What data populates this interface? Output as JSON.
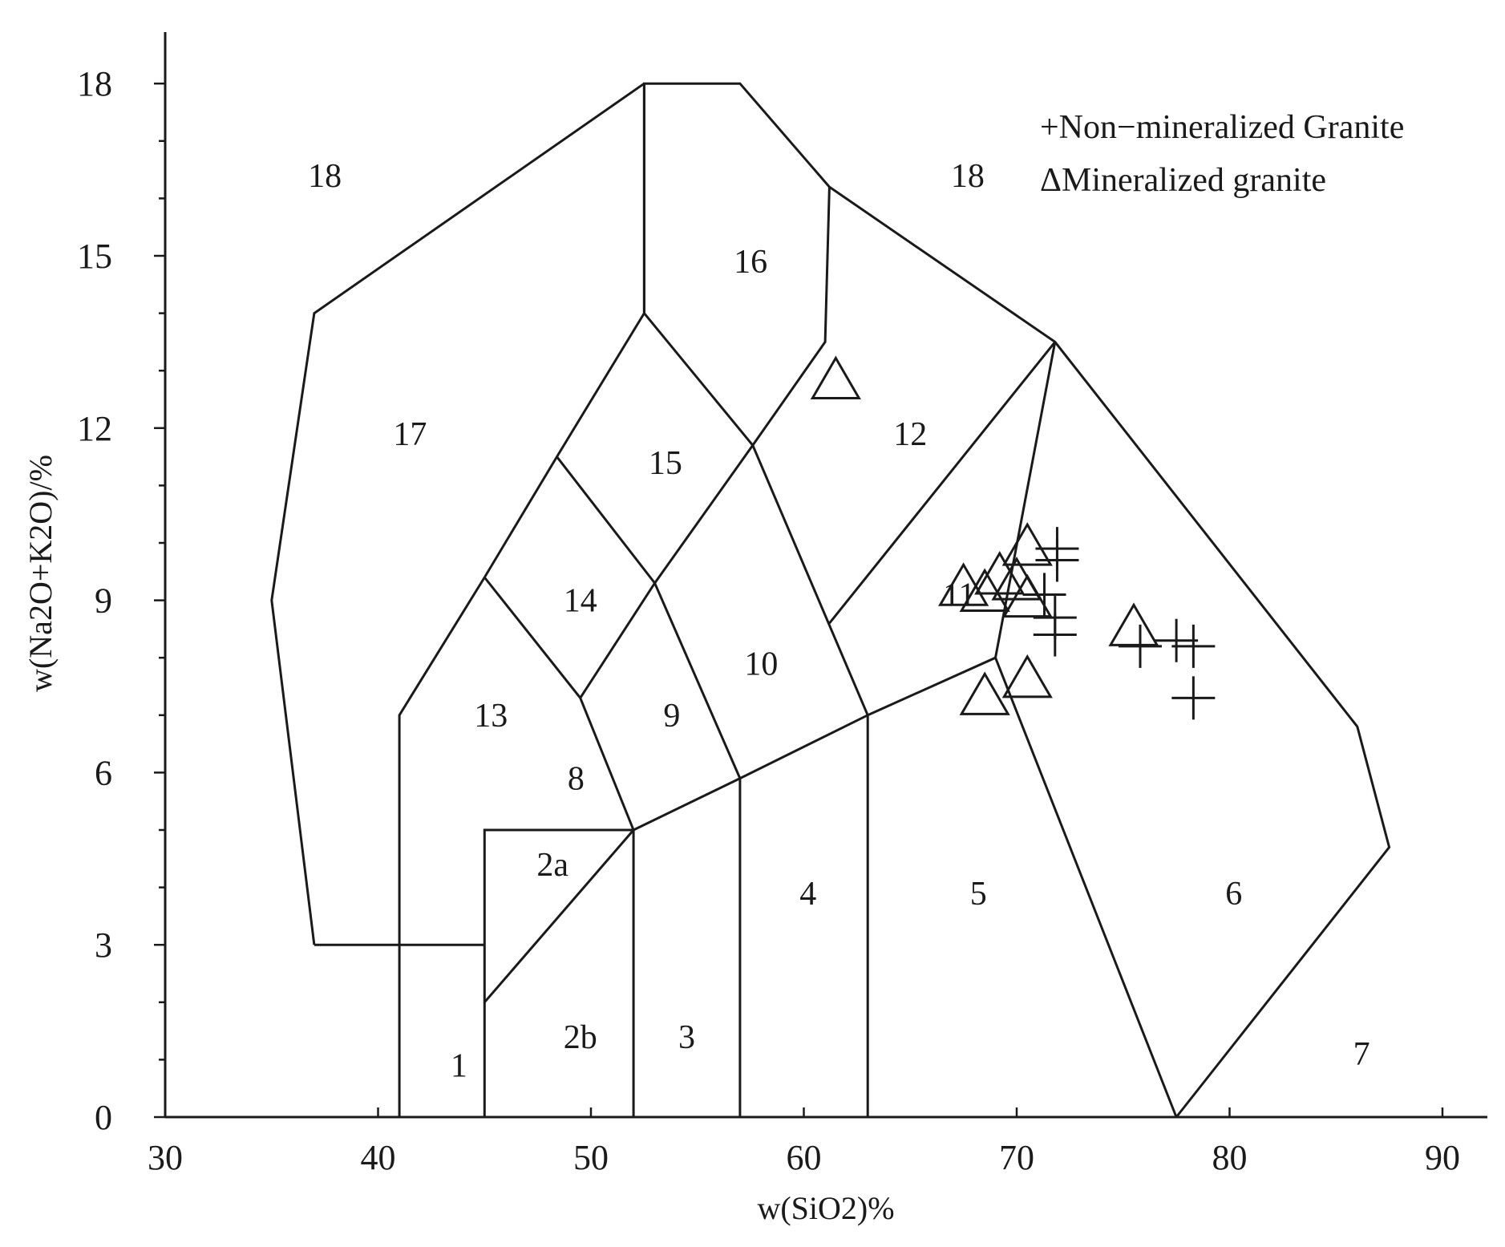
{
  "chart_data": {
    "type": "scatter",
    "xlabel": "w(SiO2)%",
    "ylabel": "w(Na2O+K2O)/%",
    "xlim": [
      30,
      92
    ],
    "ylim": [
      0,
      19
    ],
    "x_ticks": [
      "30",
      "40",
      "50",
      "60",
      "70",
      "80",
      "90"
    ],
    "y_ticks": [
      "0",
      "3",
      "6",
      "9",
      "12",
      "15",
      "18"
    ],
    "legend": {
      "placement": "top-right",
      "entries": [
        "+Non−mineralized Granite",
        "ΔMineralized granite"
      ]
    },
    "fields": [
      [
        [
          41,
          0
        ],
        [
          41,
          7
        ],
        [
          45,
          9.4
        ],
        [
          48.4,
          11.5
        ],
        [
          52.5,
          14
        ],
        [
          52.5,
          18
        ],
        [
          57,
          18
        ],
        [
          61.2,
          16.2
        ],
        [
          71.8,
          13.5
        ],
        [
          86,
          6.8
        ],
        [
          87.5,
          4.7
        ],
        [
          77.5,
          0
        ]
      ],
      [
        [
          37,
          3
        ],
        [
          45,
          3
        ]
      ],
      [
        [
          45,
          0
        ],
        [
          45,
          5
        ],
        [
          52,
          5
        ]
      ],
      [
        [
          45,
          2
        ],
        [
          52,
          5
        ],
        [
          57,
          5.9
        ],
        [
          63,
          7
        ],
        [
          69,
          8
        ],
        [
          77.5,
          0
        ]
      ],
      [
        [
          52,
          0
        ],
        [
          52,
          5
        ],
        [
          49.5,
          7.3
        ],
        [
          45,
          9.4
        ]
      ],
      [
        [
          57,
          0
        ],
        [
          57,
          5.9
        ],
        [
          53,
          9.3
        ],
        [
          48.4,
          11.5
        ]
      ],
      [
        [
          63,
          0
        ],
        [
          63,
          7
        ],
        [
          57.6,
          11.7
        ],
        [
          52.5,
          14
        ]
      ],
      [
        [
          49.5,
          7.3
        ],
        [
          53,
          9.3
        ],
        [
          57.6,
          11.7
        ],
        [
          61,
          13.5
        ],
        [
          61.2,
          16.2
        ]
      ],
      [
        [
          69,
          8
        ],
        [
          71.8,
          13.5
        ],
        [
          61.2,
          8.6
        ]
      ],
      [
        [
          52.5,
          18
        ],
        [
          52.5,
          14
        ]
      ],
      [
        [
          37,
          3
        ],
        [
          35,
          9
        ],
        [
          37,
          14
        ],
        [
          52.5,
          18
        ]
      ]
    ],
    "region_labels": [
      {
        "text": "1",
        "x": 43.8,
        "y": 0.9
      },
      {
        "text": "2a",
        "x": 48.2,
        "y": 4.4
      },
      {
        "text": "2b",
        "x": 49.5,
        "y": 1.4
      },
      {
        "text": "3",
        "x": 54.5,
        "y": 1.4
      },
      {
        "text": "4",
        "x": 60.2,
        "y": 3.9
      },
      {
        "text": "5",
        "x": 68.2,
        "y": 3.9
      },
      {
        "text": "6",
        "x": 80.2,
        "y": 3.9
      },
      {
        "text": "7",
        "x": 86.2,
        "y": 1.1
      },
      {
        "text": "8",
        "x": 49.3,
        "y": 5.9
      },
      {
        "text": "9",
        "x": 53.8,
        "y": 7
      },
      {
        "text": "10",
        "x": 58,
        "y": 7.9
      },
      {
        "text": "11",
        "x": 67.3,
        "y": 9.1
      },
      {
        "text": "12",
        "x": 65,
        "y": 11.9
      },
      {
        "text": "13",
        "x": 45.3,
        "y": 7
      },
      {
        "text": "14",
        "x": 49.5,
        "y": 9
      },
      {
        "text": "15",
        "x": 53.5,
        "y": 11.4
      },
      {
        "text": "16",
        "x": 57.5,
        "y": 14.9
      },
      {
        "text": "17",
        "x": 41.5,
        "y": 11.9
      },
      {
        "text": "18",
        "x": 37.5,
        "y": 16.4
      },
      {
        "text": "18",
        "x": 67.7,
        "y": 16.4
      }
    ],
    "series": [
      {
        "name": "+Non−mineralized Granite",
        "marker": "plus",
        "points": [
          [
            71.9,
            9.7
          ],
          [
            71.9,
            9.9
          ],
          [
            71.3,
            9.1
          ],
          [
            71.8,
            8.7
          ],
          [
            71.8,
            8.4
          ],
          [
            75.8,
            8.2
          ],
          [
            77.5,
            8.3
          ],
          [
            78.3,
            8.2
          ],
          [
            78.3,
            7.3
          ]
        ]
      },
      {
        "name": "ΔMineralized granite",
        "marker": "triangle",
        "points": [
          [
            61.5,
            12.8
          ],
          [
            70.5,
            9.9
          ],
          [
            69.2,
            9.4
          ],
          [
            68.5,
            9.1
          ],
          [
            67.5,
            9.2
          ],
          [
            70,
            9.3
          ],
          [
            70.5,
            9.0
          ],
          [
            75.5,
            8.5
          ],
          [
            70.5,
            7.6
          ],
          [
            68.5,
            7.3
          ]
        ]
      }
    ]
  }
}
